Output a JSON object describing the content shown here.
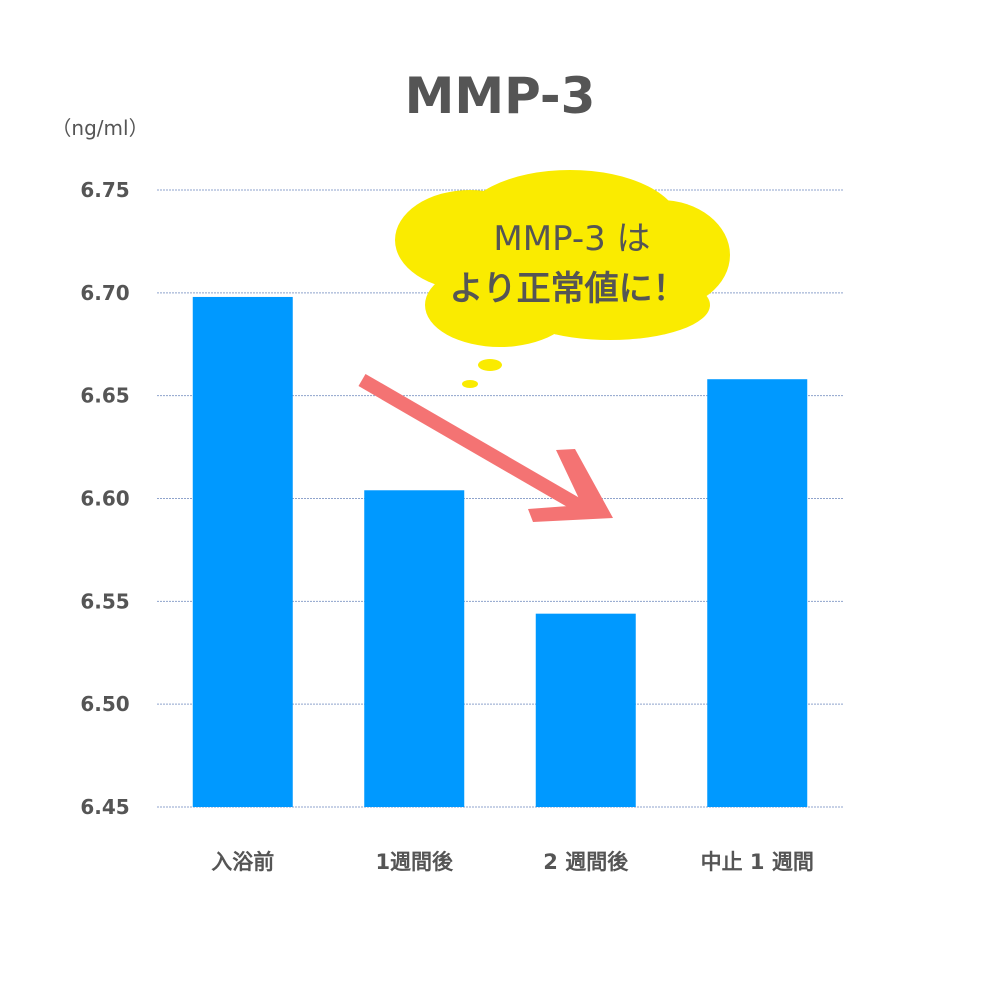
{
  "chart_data": {
    "type": "bar",
    "title": "MMP-3",
    "ylabel": "（ng/ml）",
    "xlabel": "",
    "categories": [
      "入浴前",
      "1週間後",
      "2 週間後",
      "中止 1 週間"
    ],
    "values": [
      6.698,
      6.604,
      6.544,
      6.658
    ],
    "ylim": [
      6.45,
      6.75
    ],
    "yticks": [
      "6.45",
      "6.50",
      "6.55",
      "6.60",
      "6.65",
      "6.70",
      "6.75"
    ],
    "grid": true,
    "legend": "none",
    "annotation": {
      "bubble_line1": "MMP-3 は",
      "bubble_line2": "より正常値に！",
      "arrow": "decreasing trend arrow"
    },
    "colors": {
      "bar": "#0099FF",
      "grid": "#8FA3CC",
      "text": "#555555",
      "bubble": "#FAEB00",
      "arrow": "#F47373"
    }
  }
}
